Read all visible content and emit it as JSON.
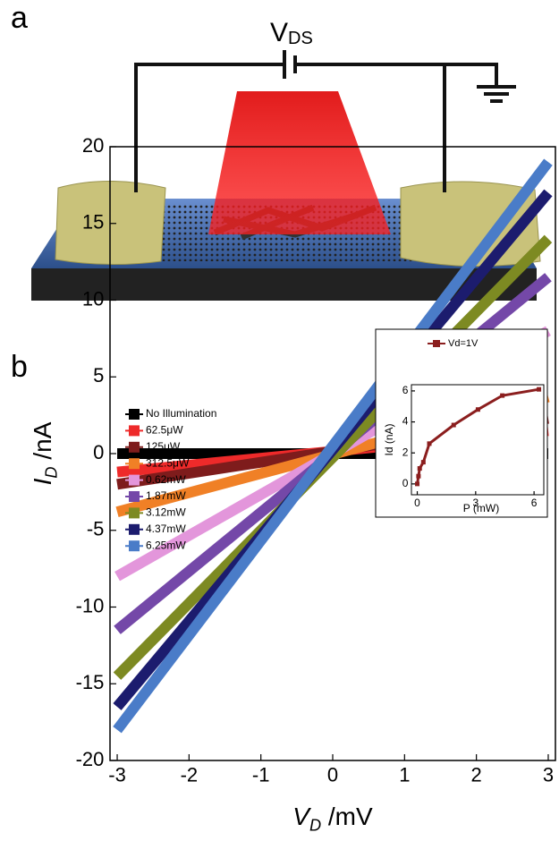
{
  "panel_a": {
    "label": "a",
    "voltage_label": {
      "symbol": "V",
      "subscript": "DS"
    }
  },
  "panel_b": {
    "label": "b"
  },
  "chart_data": [
    {
      "type": "line",
      "xlabel": {
        "symbol": "V",
        "subscript": "D",
        "unit": " /mV"
      },
      "ylabel": {
        "symbol": "I",
        "subscript": "D",
        "unit": " /nA"
      },
      "x": [
        -3,
        3
      ],
      "series": [
        {
          "name": "No Illumination",
          "color": "#000000",
          "values": [
            0,
            0
          ]
        },
        {
          "name": "62.5μW",
          "color": "#ee2a2a",
          "values": [
            -1.2,
            1.5
          ]
        },
        {
          "name": "125μW",
          "color": "#7e1c1c",
          "values": [
            -2,
            2.3
          ]
        },
        {
          "name": "312.5μW",
          "color": "#f08026",
          "values": [
            -3.8,
            3.7
          ]
        },
        {
          "name": "0.62mW",
          "color": "#e396db",
          "values": [
            -8,
            8
          ]
        },
        {
          "name": "1.87mW",
          "color": "#7448a8",
          "values": [
            -11.5,
            11.5
          ]
        },
        {
          "name": "3.12mW",
          "color": "#7d8a22",
          "values": [
            -14.5,
            14
          ]
        },
        {
          "name": "4.37mW",
          "color": "#1c1c6e",
          "values": [
            -16.5,
            17
          ]
        },
        {
          "name": "6.25mW",
          "color": "#4a7cc8",
          "values": [
            -18,
            19
          ]
        }
      ],
      "xlim": [
        -3.1,
        3.1
      ],
      "ylim": [
        -20,
        20
      ],
      "xticks": [
        -3,
        -2,
        -1,
        0,
        1,
        2,
        3
      ],
      "yticks": [
        -20,
        -15,
        -10,
        -5,
        0,
        5,
        10,
        15,
        20
      ],
      "legend": "upper left"
    },
    {
      "type": "scatter",
      "line": true,
      "xlabel": "P (mW)",
      "ylabel": "Id (nA)",
      "x": [
        0,
        0.0625,
        0.125,
        0.3125,
        0.62,
        1.87,
        3.12,
        4.37,
        6.25
      ],
      "series": [
        {
          "name": "Vd=1V",
          "color": "#8b1e1e",
          "values": [
            0,
            0.5,
            1,
            1.4,
            2.6,
            3.8,
            4.8,
            5.7,
            6.1
          ]
        }
      ],
      "xlim": [
        -0.3,
        6.5
      ],
      "ylim": [
        -0.7,
        6.4
      ],
      "xticks": [
        0,
        3,
        6
      ],
      "yticks": [
        0,
        2,
        4,
        6
      ],
      "legend": "upper left"
    }
  ]
}
